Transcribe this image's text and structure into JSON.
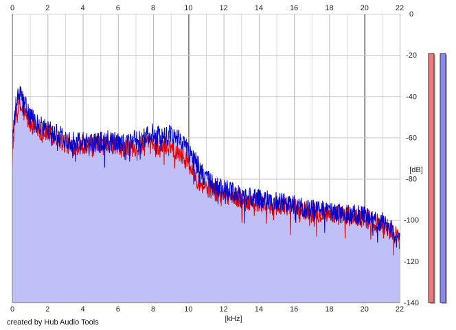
{
  "chart_data": {
    "type": "area",
    "xlabel": "[kHz]",
    "ylabel": "[dB]",
    "xlim": [
      0,
      22
    ],
    "ylim": [
      -140,
      0
    ],
    "x_ticks": [
      "0",
      "2",
      "4",
      "6",
      "8",
      "10",
      "12",
      "14",
      "16",
      "18",
      "20",
      "22"
    ],
    "y_ticks": [
      "0",
      "-20",
      "-40",
      "-60",
      "-80",
      "-100",
      "-120",
      "-140"
    ],
    "grid": true,
    "legend": "none",
    "series": [
      {
        "color": "#dd0000",
        "x": [
          0,
          0.2,
          0.4,
          0.6,
          0.8,
          1,
          1.5,
          2,
          2.5,
          3,
          3.5,
          4,
          4.5,
          5,
          5.5,
          6,
          6.5,
          7,
          7.5,
          8,
          8.5,
          9,
          9.5,
          10,
          10.5,
          11,
          11.5,
          12,
          13,
          14,
          15,
          16,
          17,
          18,
          19,
          20,
          21,
          21.5,
          22
        ],
        "y": [
          -65,
          -48,
          -45,
          -47,
          -50,
          -53,
          -56,
          -58,
          -60,
          -63,
          -64,
          -63,
          -65,
          -64,
          -63,
          -65,
          -66,
          -64,
          -64,
          -63,
          -64,
          -64,
          -67,
          -72,
          -80,
          -84,
          -86,
          -87,
          -90,
          -92,
          -93,
          -94,
          -96,
          -97,
          -98,
          -99,
          -102,
          -105,
          -110
        ]
      },
      {
        "color": "#0000cc",
        "x": [
          0,
          0.2,
          0.4,
          0.6,
          0.8,
          1,
          1.5,
          2,
          2.5,
          3,
          3.5,
          4,
          4.5,
          5,
          5.5,
          6,
          6.5,
          7,
          7.5,
          8,
          8.5,
          9,
          9.5,
          10,
          10.5,
          11,
          11.5,
          12,
          13,
          14,
          15,
          16,
          17,
          18,
          19,
          20,
          21,
          21.5,
          22
        ],
        "y": [
          -62,
          -45,
          -38,
          -42,
          -46,
          -50,
          -54,
          -56,
          -58,
          -61,
          -62,
          -61,
          -63,
          -62,
          -61,
          -63,
          -63,
          -61,
          -60,
          -58,
          -60,
          -58,
          -60,
          -66,
          -73,
          -80,
          -84,
          -85,
          -88,
          -90,
          -91,
          -93,
          -95,
          -96,
          -97,
          -98,
          -101,
          -104,
          -111
        ]
      }
    ]
  },
  "meters": [
    {
      "name": "left-channel-meter",
      "color": "#f07878",
      "level": 0.86
    },
    {
      "name": "right-channel-meter",
      "color": "#8888f0",
      "level": 0.86
    }
  ],
  "footer": {
    "credit": "created by Hub Audio Tools"
  }
}
